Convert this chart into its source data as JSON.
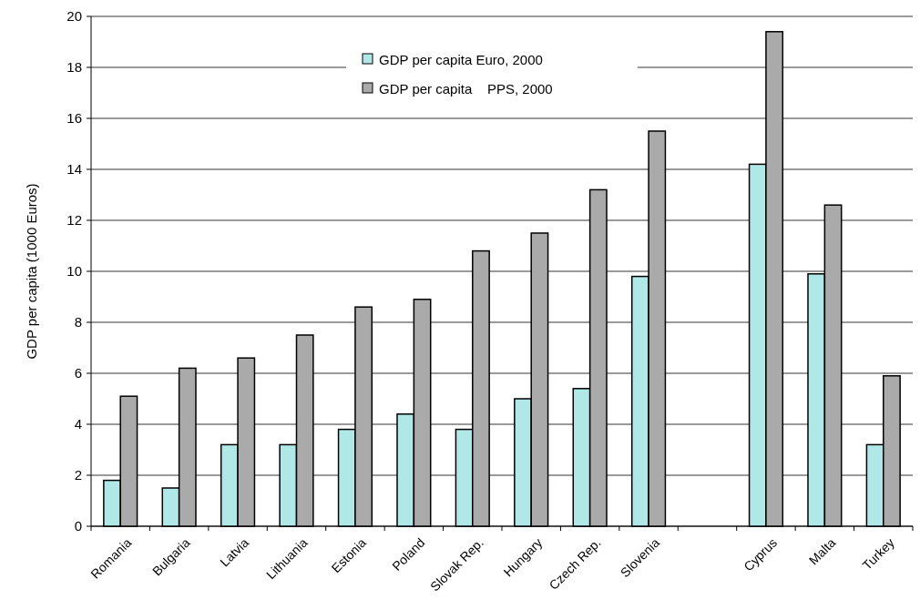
{
  "chart_data": {
    "type": "bar",
    "ylabel": "GDP per capita (1000 Euros)",
    "categories": [
      "Romania",
      "Bulgaria",
      "Latvia",
      "Lithuania",
      "Estonia",
      "Poland",
      "Slovak Rep.",
      "Hungary",
      "Czech Rep.",
      "Slovenia",
      null,
      "Cyprus",
      "Malta",
      "Turkey"
    ],
    "series": [
      {
        "name": "GDP per capita Euro, 2000",
        "color": "#b0e8e8",
        "values": [
          1.8,
          1.5,
          3.2,
          3.2,
          3.8,
          4.4,
          3.8,
          5.0,
          5.4,
          9.8,
          null,
          14.2,
          9.9,
          3.2
        ]
      },
      {
        "name": "GDP per capita    PPS, 2000",
        "color": "#aaaaaa",
        "values": [
          5.1,
          6.2,
          6.6,
          7.5,
          8.6,
          8.9,
          10.8,
          11.5,
          13.2,
          15.5,
          null,
          19.4,
          12.6,
          5.9
        ]
      }
    ],
    "ylim": [
      0,
      20
    ],
    "yticks": [
      0,
      2,
      4,
      6,
      8,
      10,
      12,
      14,
      16,
      18,
      20
    ],
    "grid": "y",
    "legend": "top"
  }
}
